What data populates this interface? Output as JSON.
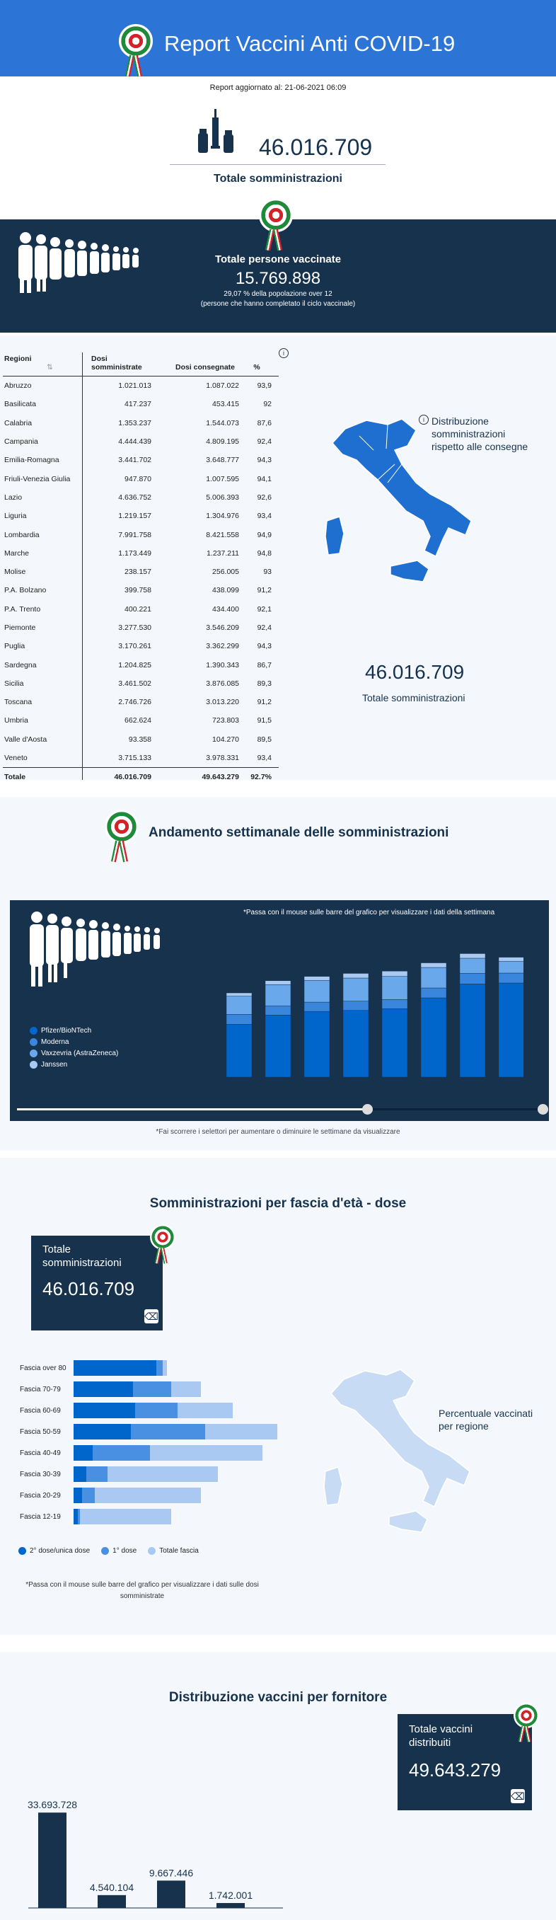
{
  "header": {
    "title": "Report Vaccini Anti COVID-19",
    "updated": "Report aggiornato al: 21-06-2021 06:09"
  },
  "totals": {
    "somministrazioni": "46.016.709",
    "somministrazioni_label": "Totale somministrazioni"
  },
  "vaccinated": {
    "label": "Totale persone vaccinate",
    "value": "15.769.898",
    "pct_line": "29,07 % della popolazione over 12",
    "note": "(persone che hanno completato il ciclo vaccinale)"
  },
  "table": {
    "headers": [
      "Regioni",
      "Dosi somministrate",
      "Dosi consegnate",
      "%"
    ],
    "rows": [
      [
        "Abruzzo",
        "1.021.013",
        "1.087.022",
        "93,9"
      ],
      [
        "Basilicata",
        "417.237",
        "453.415",
        "92"
      ],
      [
        "Calabria",
        "1.353.237",
        "1.544.073",
        "87,6"
      ],
      [
        "Campania",
        "4.444.439",
        "4.809.195",
        "92,4"
      ],
      [
        "Emilia-Romagna",
        "3.441.702",
        "3.648.777",
        "94,3"
      ],
      [
        "Friuli-Venezia Giulia",
        "947.870",
        "1.007.595",
        "94,1"
      ],
      [
        "Lazio",
        "4.636.752",
        "5.006.393",
        "92,6"
      ],
      [
        "Liguria",
        "1.219.157",
        "1.304.976",
        "93,4"
      ],
      [
        "Lombardia",
        "7.991.758",
        "8.421.558",
        "94,9"
      ],
      [
        "Marche",
        "1.173.449",
        "1.237.211",
        "94,8"
      ],
      [
        "Molise",
        "238.157",
        "256.005",
        "93"
      ],
      [
        "P.A. Bolzano",
        "399.758",
        "438.099",
        "91,2"
      ],
      [
        "P.A. Trento",
        "400.221",
        "434.400",
        "92,1"
      ],
      [
        "Piemonte",
        "3.277.530",
        "3.546.209",
        "92,4"
      ],
      [
        "Puglia",
        "3.170.261",
        "3.362.299",
        "94,3"
      ],
      [
        "Sardegna",
        "1.204.825",
        "1.390.343",
        "86,7"
      ],
      [
        "Sicilia",
        "3.461.502",
        "3.876.085",
        "89,3"
      ],
      [
        "Toscana",
        "2.746.726",
        "3.013.220",
        "91,2"
      ],
      [
        "Umbria",
        "662.624",
        "723.803",
        "91,5"
      ],
      [
        "Valle d'Aosta",
        "93.358",
        "104.270",
        "89,5"
      ],
      [
        "Veneto",
        "3.715.133",
        "3.978.331",
        "93,4"
      ]
    ],
    "total": [
      "Totale",
      "46.016.709",
      "49.643.279",
      "92.7%"
    ]
  },
  "map1": {
    "info": "Distribuzione somministrazioni rispetto alle consegne",
    "value": "46.016.709",
    "label": "Totale somministrazioni"
  },
  "weekly": {
    "title": "Andamento settimanale delle somministrazioni",
    "hint": "*Passa con il mouse sulle barre del grafico per visualizzare i dati della settimana",
    "footnote": "*Fai scorrere i selettori per aumentare o diminuire le settimane da visualizzare",
    "legend": [
      "Pfizer/BioNTech",
      "Moderna",
      "Vaxzevria (AstraZeneca)",
      "Janssen"
    ]
  },
  "age": {
    "title": "Somministrazioni per fascia d'età - dose",
    "box_label": "Totale somministrazioni",
    "box_value": "46.016.709",
    "legend": [
      "2° dose/unica dose",
      "1° dose",
      "Totale fascia"
    ],
    "hint": "*Passa con il mouse sulle barre del grafico per visualizzare i dati sulle dosi somministrate",
    "map_label": "Percentuale vaccinati per regione"
  },
  "supplier": {
    "title": "Distribuzione vaccini per fornitore",
    "box_label": "Totale vaccini distribuiti",
    "box_value": "49.643.279"
  },
  "colors": {
    "blue": "#0066cc",
    "mid": "#4a90e2",
    "light": "#a9c9f2",
    "navy": "#17324d"
  },
  "chart_data": [
    {
      "type": "bar",
      "title": "Andamento settimanale delle somministrazioni",
      "stacked": true,
      "categories": [
        "",
        "",
        "",
        "",
        "",
        "",
        "",
        ""
      ],
      "series": [
        {
          "name": "Pfizer/BioNTech",
          "values": [
            1.6,
            1.88,
            1.99,
            2.02,
            2.07,
            2.4,
            2.82,
            2.85
          ]
        },
        {
          "name": "Moderna",
          "values": [
            0.3,
            0.28,
            0.28,
            0.28,
            0.28,
            0.3,
            0.32,
            0.3
          ]
        },
        {
          "name": "Vaxzevria (AstraZeneca)",
          "values": [
            0.55,
            0.64,
            0.66,
            0.7,
            0.7,
            0.62,
            0.46,
            0.36
          ]
        },
        {
          "name": "Janssen",
          "values": [
            0.1,
            0.12,
            0.12,
            0.14,
            0.16,
            0.14,
            0.14,
            0.12
          ]
        }
      ]
    },
    {
      "type": "bar",
      "title": "Somministrazioni per fascia d'età - dose",
      "orientation": "horizontal",
      "categories": [
        "Fascia over 80",
        "Fascia 70-79",
        "Fascia 60-69",
        "Fascia 50-59",
        "Fascia 40-49",
        "Fascia 30-39",
        "Fascia 20-29",
        "Fascia 12-19"
      ],
      "series": [
        {
          "name": "2° dose/unica dose",
          "values": [
            3.9,
            2.8,
            2.9,
            2.7,
            0.9,
            0.6,
            0.4,
            0.2
          ]
        },
        {
          "name": "1° dose",
          "values": [
            0.3,
            1.8,
            2.0,
            3.5,
            2.7,
            1.0,
            0.6,
            0.1
          ]
        },
        {
          "name": "Totale fascia",
          "values": [
            4.4,
            6.0,
            7.5,
            9.6,
            8.9,
            6.8,
            6.0,
            4.6
          ]
        }
      ]
    },
    {
      "type": "bar",
      "title": "Distribuzione vaccini per fornitore",
      "categories": [
        "",
        "",
        "",
        ""
      ],
      "values": [
        33693728,
        4540104,
        9667446,
        1742001
      ],
      "labels": [
        "33.693.728",
        "4.540.104",
        "9.667.446",
        "1.742.001"
      ]
    }
  ]
}
